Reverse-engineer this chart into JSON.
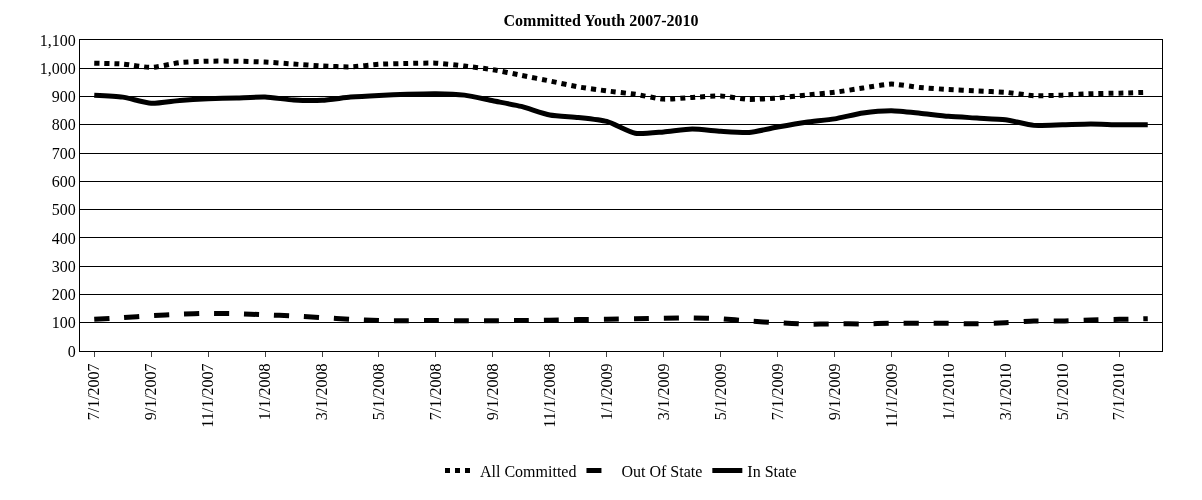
{
  "chart_data": {
    "type": "line",
    "title": "Committed Youth 2007-2010",
    "categories": [
      "7/1/2007",
      null,
      "9/1/2007",
      null,
      "11/1/2007",
      null,
      "1/1/2008",
      null,
      "3/1/2008",
      null,
      "5/1/2008",
      null,
      "7/1/2008",
      null,
      "9/1/2008",
      null,
      "11/1/2008",
      null,
      "1/1/2009",
      null,
      "3/1/2009",
      null,
      "5/1/2009",
      null,
      "7/1/2009",
      null,
      "9/1/2009",
      null,
      "11/1/2009",
      null,
      "1/1/2010",
      null,
      "3/1/2010",
      null,
      "5/1/2010",
      null,
      "7/1/2010",
      null
    ],
    "series": [
      {
        "name": "All Committed",
        "color": "#000000",
        "line_style": "dotted",
        "values": [
          1018,
          1015,
          1003,
          1020,
          1025,
          1025,
          1022,
          1015,
          1008,
          1005,
          1014,
          1017,
          1018,
          1008,
          995,
          975,
          955,
          934,
          920,
          908,
          891,
          897,
          902,
          890,
          895,
          905,
          915,
          930,
          944,
          932,
          925,
          920,
          915,
          903,
          905,
          910,
          912,
          915
        ]
      },
      {
        "name": "Out Of State",
        "color": "#000000",
        "line_style": "dashed",
        "values": [
          112,
          118,
          125,
          130,
          133,
          132,
          128,
          124,
          118,
          112,
          108,
          107,
          108,
          107,
          107,
          108,
          109,
          111,
          112,
          114,
          116,
          117,
          114,
          106,
          100,
          95,
          96,
          96,
          98,
          98,
          98,
          96,
          100,
          106,
          106,
          110,
          112,
          114
        ]
      },
      {
        "name": "In State",
        "color": "#000000",
        "line_style": "solid",
        "values": [
          905,
          898,
          876,
          886,
          892,
          895,
          898,
          888,
          887,
          898,
          904,
          908,
          910,
          905,
          885,
          865,
          835,
          826,
          812,
          770,
          775,
          785,
          777,
          773,
          792,
          809,
          821,
          842,
          850,
          841,
          830,
          824,
          818,
          798,
          800,
          803,
          800,
          800
        ]
      }
    ],
    "ylim": [
      0,
      1100
    ],
    "yticks": [
      0,
      100,
      200,
      300,
      400,
      500,
      600,
      700,
      800,
      900,
      {
        "value": 1000,
        "label": "1,000"
      },
      {
        "value": 1100,
        "label": "1,100"
      }
    ],
    "grid": "y",
    "legend": "bottom"
  }
}
